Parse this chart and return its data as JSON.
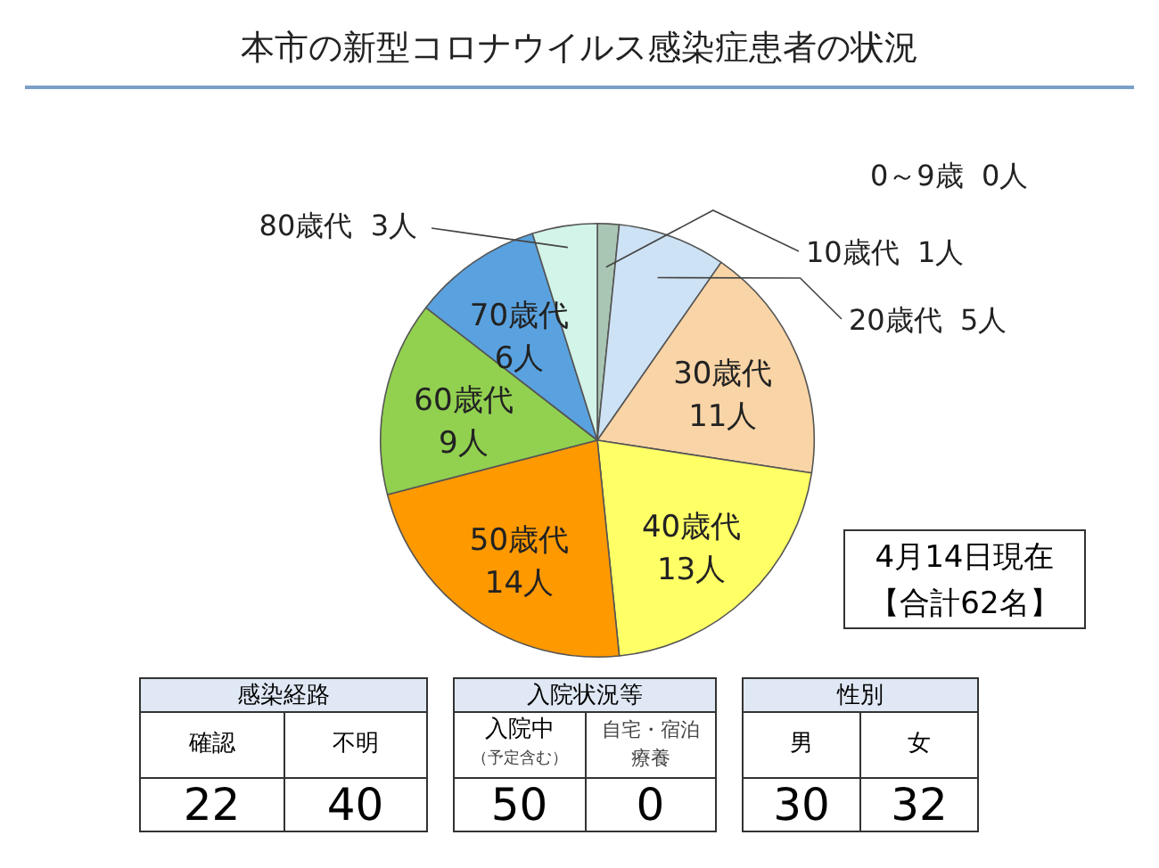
{
  "chart_data": {
    "type": "pie",
    "title": "本市の新型コロナウイルス感染症患者の状況",
    "categories": [
      "0～9歳",
      "10歳代",
      "20歳代",
      "30歳代",
      "40歳代",
      "50歳代",
      "60歳代",
      "70歳代",
      "80歳代"
    ],
    "values": [
      0,
      1,
      5,
      11,
      13,
      14,
      9,
      6,
      3
    ],
    "value_labels": [
      "0人",
      "1人",
      "5人",
      "11人",
      "13人",
      "14人",
      "9人",
      "6人",
      "3人"
    ],
    "colors": [
      "#c0c0c0",
      "#a9c6b4",
      "#cde2f5",
      "#f9d4a6",
      "#ffff66",
      "#ff9900",
      "#92d050",
      "#5aa2df",
      "#d3f4e8"
    ],
    "legend": false,
    "annotations": [
      "4月14日現在",
      "【合計62名】",
      "感染経路",
      "確認",
      "不明",
      "22",
      "40",
      "入院状況等",
      "入院中",
      "（予定含む）",
      "自宅・宿泊療養",
      "50",
      "0",
      "性別",
      "男",
      "女",
      "30",
      "32"
    ]
  }
}
